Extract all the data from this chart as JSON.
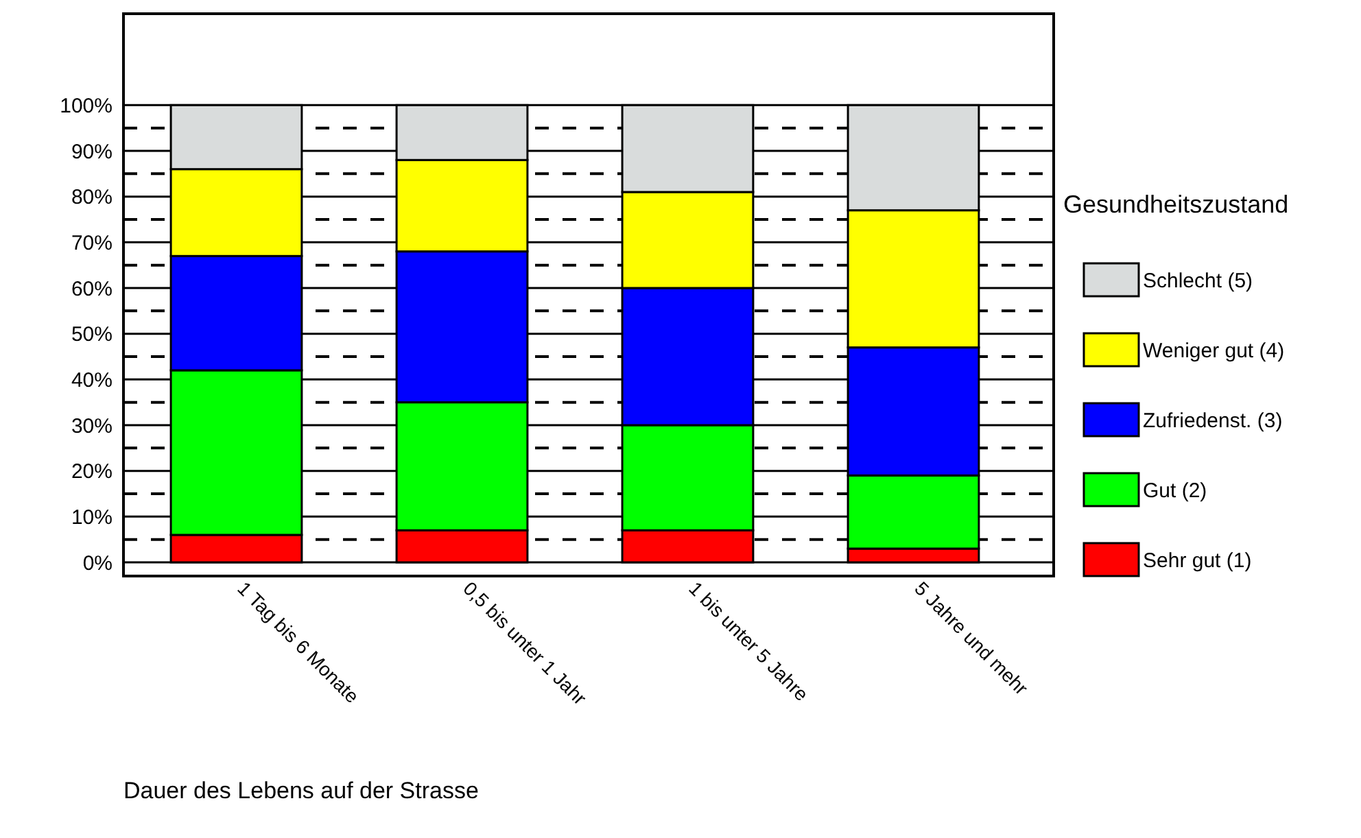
{
  "chart_data": {
    "type": "bar",
    "stacked": true,
    "xlabel": "Dauer des Lebens auf der Strasse",
    "legend_title": "Gesundheitszustand",
    "legend": "right",
    "grid": "y",
    "categories": [
      "1 Tag bis 6 Monate",
      "0,5 bis unter 1 Jahr",
      "1 bis unter 5 Jahre",
      "5 Jahre und mehr"
    ],
    "ylim": [
      0,
      120
    ],
    "yticks": [
      {
        "value": 0,
        "label": "0%"
      },
      {
        "value": 10,
        "label": "10%"
      },
      {
        "value": 20,
        "label": "20%"
      },
      {
        "value": 30,
        "label": "30%"
      },
      {
        "value": 40,
        "label": "40%"
      },
      {
        "value": 50,
        "label": "50%"
      },
      {
        "value": 60,
        "label": "60%"
      },
      {
        "value": 70,
        "label": "70%"
      },
      {
        "value": 80,
        "label": "80%"
      },
      {
        "value": 90,
        "label": "90%"
      },
      {
        "value": 100,
        "label": "100%"
      }
    ],
    "series": [
      {
        "name": "Sehr gut (1)",
        "color": "#ff0000",
        "values": [
          6,
          7,
          7,
          3
        ]
      },
      {
        "name": "Gut (2)",
        "color": "#00ff00",
        "values": [
          36,
          28,
          23,
          16
        ]
      },
      {
        "name": "Zufriedenst. (3)",
        "color": "#0000ff",
        "values": [
          25,
          33,
          30,
          28
        ]
      },
      {
        "name": "Weniger gut (4)",
        "color": "#ffff00",
        "values": [
          19,
          20,
          21,
          30
        ]
      },
      {
        "name": "Schlecht (5)",
        "color": "#d9dcdc",
        "values": [
          14,
          12,
          19,
          23
        ]
      }
    ]
  }
}
